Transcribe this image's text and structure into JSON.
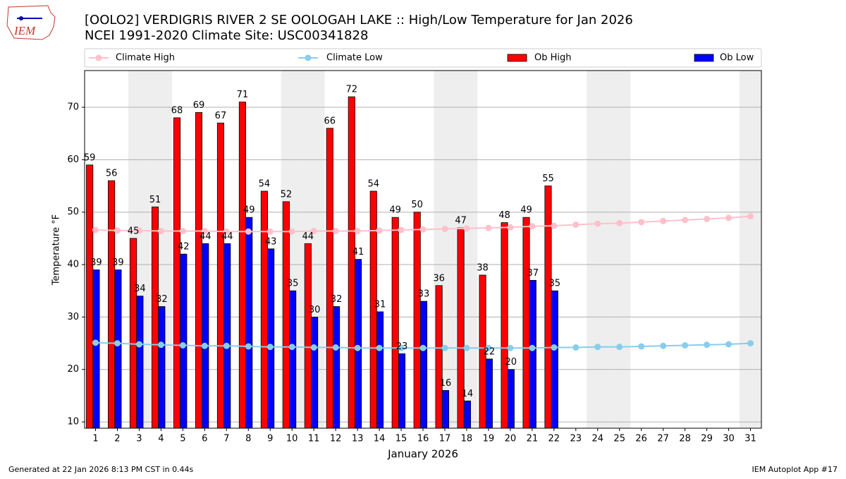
{
  "chart_data": {
    "type": "bar",
    "title": "[OOLO2] VERDIGRIS RIVER 2 SE OOLOGAH LAKE :: High/Low Temperature for Jan 2026",
    "subtitle": "NCEI 1991-2020 Climate Site: USC00341828",
    "logo_text": "IEM",
    "x_label": "January 2026",
    "y_label": "Temperature °F",
    "footer_left": "Generated at 22 Jan 2026 8:13 PM CST in 0.44s",
    "footer_right": "IEM Autoplot App #17",
    "x": [
      1,
      2,
      3,
      4,
      5,
      6,
      7,
      8,
      9,
      10,
      11,
      12,
      13,
      14,
      15,
      16,
      17,
      18,
      19,
      20,
      21,
      22,
      23,
      24,
      25,
      26,
      27,
      28,
      29,
      30,
      31
    ],
    "xlim": [
      0.5,
      31.5
    ],
    "xticks": [
      1,
      2,
      3,
      4,
      5,
      6,
      7,
      8,
      9,
      10,
      11,
      12,
      13,
      14,
      15,
      16,
      17,
      18,
      19,
      20,
      21,
      22,
      23,
      24,
      25,
      26,
      27,
      28,
      29,
      30,
      31
    ],
    "ylim": [
      8.8,
      77
    ],
    "yticks": [
      10,
      20,
      30,
      40,
      50,
      60,
      70
    ],
    "grid": true,
    "weekend_days": [
      3,
      4,
      10,
      11,
      17,
      18,
      24,
      25,
      31
    ],
    "weekend_color": "#eeeeee",
    "series": [
      {
        "name": "Climate High",
        "type": "line",
        "color": "#ffc0cb",
        "values": [
          46.6,
          46.5,
          46.5,
          46.4,
          46.4,
          46.4,
          46.3,
          46.3,
          46.3,
          46.3,
          46.4,
          46.4,
          46.4,
          46.5,
          46.6,
          46.7,
          46.8,
          46.9,
          47.0,
          47.1,
          47.3,
          47.4,
          47.6,
          47.8,
          47.9,
          48.1,
          48.3,
          48.5,
          48.7,
          48.9,
          49.2
        ]
      },
      {
        "name": "Climate Low",
        "type": "line",
        "color": "#87ceeb",
        "values": [
          25.1,
          25.0,
          24.8,
          24.7,
          24.6,
          24.5,
          24.5,
          24.4,
          24.3,
          24.3,
          24.2,
          24.2,
          24.1,
          24.1,
          24.1,
          24.1,
          24.1,
          24.1,
          24.1,
          24.1,
          24.1,
          24.2,
          24.2,
          24.3,
          24.3,
          24.4,
          24.5,
          24.6,
          24.7,
          24.8,
          25.0
        ]
      },
      {
        "name": "Ob High",
        "type": "bar",
        "color": "#ff0000",
        "values": [
          59,
          56,
          45,
          51,
          68,
          69,
          67,
          71,
          54,
          52,
          44,
          66,
          72,
          54,
          49,
          50,
          36,
          47,
          38,
          48,
          49,
          55,
          null,
          null,
          null,
          null,
          null,
          null,
          null,
          null,
          null
        ]
      },
      {
        "name": "Ob Low",
        "type": "bar",
        "color": "#0000ff",
        "values": [
          39,
          39,
          34,
          32,
          42,
          44,
          44,
          49,
          43,
          35,
          30,
          32,
          41,
          31,
          23,
          33,
          16,
          14,
          22,
          20,
          37,
          35,
          null,
          null,
          null,
          null,
          null,
          null,
          null,
          null,
          null
        ]
      }
    ]
  }
}
